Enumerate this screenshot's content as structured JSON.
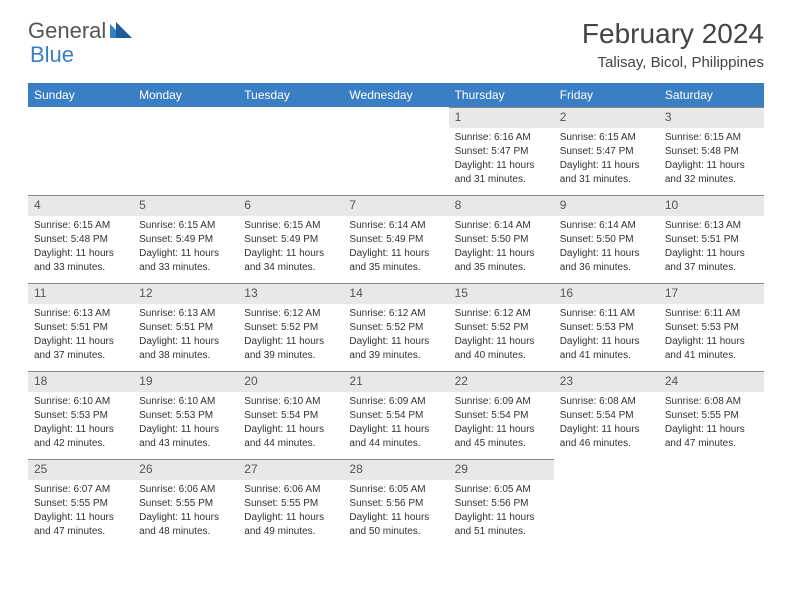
{
  "logo": {
    "word1": "General",
    "word2": "Blue"
  },
  "title": "February 2024",
  "location": "Talisay, Bicol, Philippines",
  "colors": {
    "header_bg": "#3a7fc4",
    "header_text": "#ffffff",
    "daynum_bg": "#e8e8e8",
    "daynum_border": "#888888",
    "text": "#333333",
    "logo_gray": "#555555",
    "logo_blue": "#3a7fc4"
  },
  "day_headers": [
    "Sunday",
    "Monday",
    "Tuesday",
    "Wednesday",
    "Thursday",
    "Friday",
    "Saturday"
  ],
  "weeks": [
    [
      null,
      null,
      null,
      null,
      {
        "n": "1",
        "sr": "Sunrise: 6:16 AM",
        "ss": "Sunset: 5:47 PM",
        "d1": "Daylight: 11 hours",
        "d2": "and 31 minutes."
      },
      {
        "n": "2",
        "sr": "Sunrise: 6:15 AM",
        "ss": "Sunset: 5:47 PM",
        "d1": "Daylight: 11 hours",
        "d2": "and 31 minutes."
      },
      {
        "n": "3",
        "sr": "Sunrise: 6:15 AM",
        "ss": "Sunset: 5:48 PM",
        "d1": "Daylight: 11 hours",
        "d2": "and 32 minutes."
      }
    ],
    [
      {
        "n": "4",
        "sr": "Sunrise: 6:15 AM",
        "ss": "Sunset: 5:48 PM",
        "d1": "Daylight: 11 hours",
        "d2": "and 33 minutes."
      },
      {
        "n": "5",
        "sr": "Sunrise: 6:15 AM",
        "ss": "Sunset: 5:49 PM",
        "d1": "Daylight: 11 hours",
        "d2": "and 33 minutes."
      },
      {
        "n": "6",
        "sr": "Sunrise: 6:15 AM",
        "ss": "Sunset: 5:49 PM",
        "d1": "Daylight: 11 hours",
        "d2": "and 34 minutes."
      },
      {
        "n": "7",
        "sr": "Sunrise: 6:14 AM",
        "ss": "Sunset: 5:49 PM",
        "d1": "Daylight: 11 hours",
        "d2": "and 35 minutes."
      },
      {
        "n": "8",
        "sr": "Sunrise: 6:14 AM",
        "ss": "Sunset: 5:50 PM",
        "d1": "Daylight: 11 hours",
        "d2": "and 35 minutes."
      },
      {
        "n": "9",
        "sr": "Sunrise: 6:14 AM",
        "ss": "Sunset: 5:50 PM",
        "d1": "Daylight: 11 hours",
        "d2": "and 36 minutes."
      },
      {
        "n": "10",
        "sr": "Sunrise: 6:13 AM",
        "ss": "Sunset: 5:51 PM",
        "d1": "Daylight: 11 hours",
        "d2": "and 37 minutes."
      }
    ],
    [
      {
        "n": "11",
        "sr": "Sunrise: 6:13 AM",
        "ss": "Sunset: 5:51 PM",
        "d1": "Daylight: 11 hours",
        "d2": "and 37 minutes."
      },
      {
        "n": "12",
        "sr": "Sunrise: 6:13 AM",
        "ss": "Sunset: 5:51 PM",
        "d1": "Daylight: 11 hours",
        "d2": "and 38 minutes."
      },
      {
        "n": "13",
        "sr": "Sunrise: 6:12 AM",
        "ss": "Sunset: 5:52 PM",
        "d1": "Daylight: 11 hours",
        "d2": "and 39 minutes."
      },
      {
        "n": "14",
        "sr": "Sunrise: 6:12 AM",
        "ss": "Sunset: 5:52 PM",
        "d1": "Daylight: 11 hours",
        "d2": "and 39 minutes."
      },
      {
        "n": "15",
        "sr": "Sunrise: 6:12 AM",
        "ss": "Sunset: 5:52 PM",
        "d1": "Daylight: 11 hours",
        "d2": "and 40 minutes."
      },
      {
        "n": "16",
        "sr": "Sunrise: 6:11 AM",
        "ss": "Sunset: 5:53 PM",
        "d1": "Daylight: 11 hours",
        "d2": "and 41 minutes."
      },
      {
        "n": "17",
        "sr": "Sunrise: 6:11 AM",
        "ss": "Sunset: 5:53 PM",
        "d1": "Daylight: 11 hours",
        "d2": "and 41 minutes."
      }
    ],
    [
      {
        "n": "18",
        "sr": "Sunrise: 6:10 AM",
        "ss": "Sunset: 5:53 PM",
        "d1": "Daylight: 11 hours",
        "d2": "and 42 minutes."
      },
      {
        "n": "19",
        "sr": "Sunrise: 6:10 AM",
        "ss": "Sunset: 5:53 PM",
        "d1": "Daylight: 11 hours",
        "d2": "and 43 minutes."
      },
      {
        "n": "20",
        "sr": "Sunrise: 6:10 AM",
        "ss": "Sunset: 5:54 PM",
        "d1": "Daylight: 11 hours",
        "d2": "and 44 minutes."
      },
      {
        "n": "21",
        "sr": "Sunrise: 6:09 AM",
        "ss": "Sunset: 5:54 PM",
        "d1": "Daylight: 11 hours",
        "d2": "and 44 minutes."
      },
      {
        "n": "22",
        "sr": "Sunrise: 6:09 AM",
        "ss": "Sunset: 5:54 PM",
        "d1": "Daylight: 11 hours",
        "d2": "and 45 minutes."
      },
      {
        "n": "23",
        "sr": "Sunrise: 6:08 AM",
        "ss": "Sunset: 5:54 PM",
        "d1": "Daylight: 11 hours",
        "d2": "and 46 minutes."
      },
      {
        "n": "24",
        "sr": "Sunrise: 6:08 AM",
        "ss": "Sunset: 5:55 PM",
        "d1": "Daylight: 11 hours",
        "d2": "and 47 minutes."
      }
    ],
    [
      {
        "n": "25",
        "sr": "Sunrise: 6:07 AM",
        "ss": "Sunset: 5:55 PM",
        "d1": "Daylight: 11 hours",
        "d2": "and 47 minutes."
      },
      {
        "n": "26",
        "sr": "Sunrise: 6:06 AM",
        "ss": "Sunset: 5:55 PM",
        "d1": "Daylight: 11 hours",
        "d2": "and 48 minutes."
      },
      {
        "n": "27",
        "sr": "Sunrise: 6:06 AM",
        "ss": "Sunset: 5:55 PM",
        "d1": "Daylight: 11 hours",
        "d2": "and 49 minutes."
      },
      {
        "n": "28",
        "sr": "Sunrise: 6:05 AM",
        "ss": "Sunset: 5:56 PM",
        "d1": "Daylight: 11 hours",
        "d2": "and 50 minutes."
      },
      {
        "n": "29",
        "sr": "Sunrise: 6:05 AM",
        "ss": "Sunset: 5:56 PM",
        "d1": "Daylight: 11 hours",
        "d2": "and 51 minutes."
      },
      null,
      null
    ]
  ]
}
